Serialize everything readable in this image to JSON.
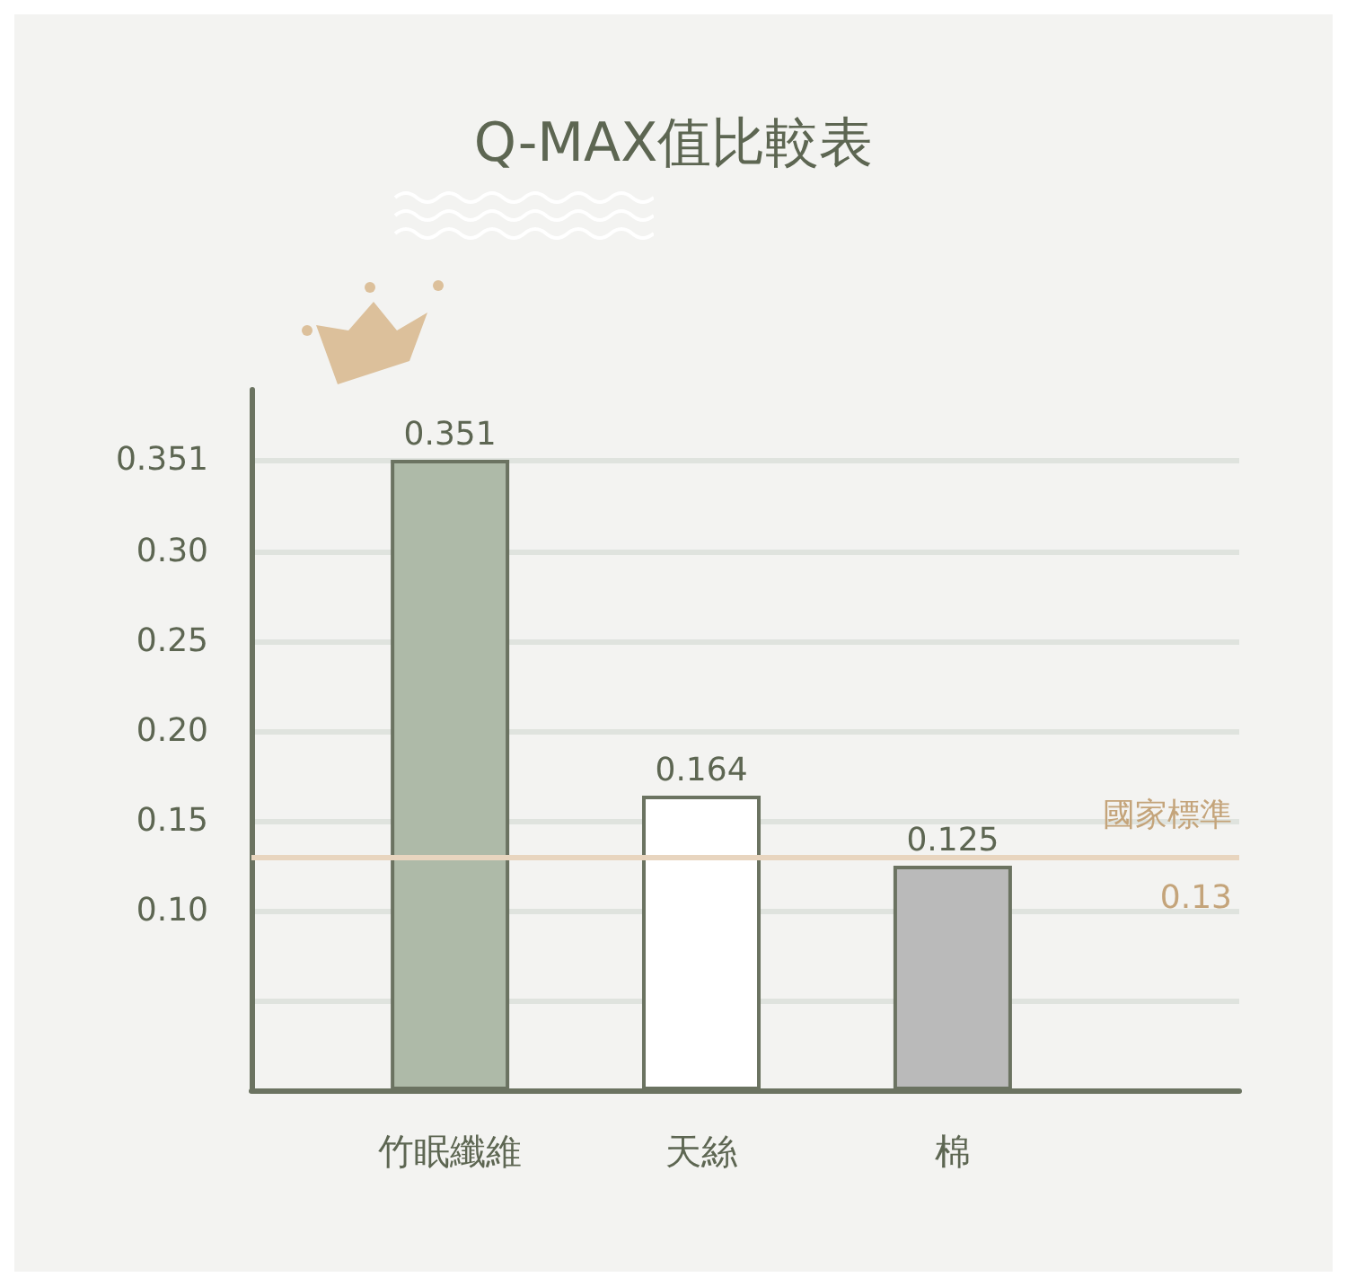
{
  "chart_data": {
    "type": "bar",
    "title": "Q-MAX值比較表",
    "categories": [
      "竹眠纖維",
      "天絲",
      "棉"
    ],
    "values": [
      0.351,
      0.164,
      0.125
    ],
    "colors": [
      "#aebaa8",
      "#ffffff",
      "#bababa"
    ],
    "data_labels": true,
    "ylim": [
      0,
      0.39
    ],
    "yticks": [
      {
        "value": 0.05,
        "label": null
      },
      {
        "value": 0.1,
        "label": "0.10"
      },
      0.15,
      {
        "value": 0.2,
        "label": "0.20"
      },
      0.25,
      {
        "value": 0.3,
        "label": "0.30"
      },
      0.351
    ],
    "grid": "y",
    "ref_lines": [
      {
        "axis": "y",
        "value": 0.13,
        "label": "國家標準\n0.13",
        "color": "#e8d5bf"
      }
    ]
  }
}
